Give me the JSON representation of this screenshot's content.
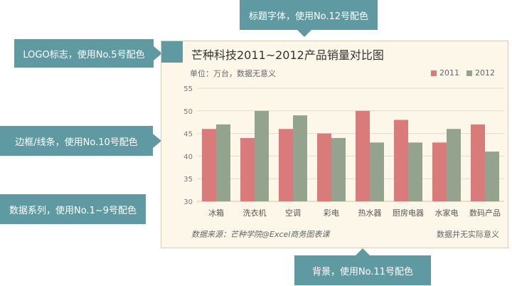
{
  "callouts": {
    "title_font": "标题字体，使用No.12号配色",
    "logo": "LOGO标志，使用No.5号配色",
    "border": "边框/线条，使用No.10号配色",
    "series": "数据系列，使用No.1~9号配色",
    "background": "背景，使用No.11号配色"
  },
  "colors": {
    "callout": "#5f9aa3",
    "series_2011": "#d97b7b",
    "series_2012": "#94a38d",
    "background": "#fdf7ea",
    "border": "#d9ccb1"
  },
  "chart_data": {
    "type": "bar",
    "title": "芒种科技2011~2012产品销量对比图",
    "subtitle": "单位：万台，数据无意义",
    "categories": [
      "冰箱",
      "洗衣机",
      "空调",
      "彩电",
      "热水器",
      "厨房电器",
      "水家电",
      "数码产品"
    ],
    "series": [
      {
        "name": "2011",
        "values": [
          46,
          44,
          46,
          45,
          50,
          48,
          43,
          47
        ]
      },
      {
        "name": "2012",
        "values": [
          47,
          50,
          49,
          44,
          43,
          43,
          46,
          41
        ]
      }
    ],
    "ylim": [
      30,
      55
    ],
    "yticks": [
      30,
      35,
      40,
      45,
      50,
      55
    ],
    "grid": true,
    "legend": "top-right",
    "source": "数据来源：芒种学院@Excel商务图表课",
    "note": "数据并无实际意义"
  }
}
